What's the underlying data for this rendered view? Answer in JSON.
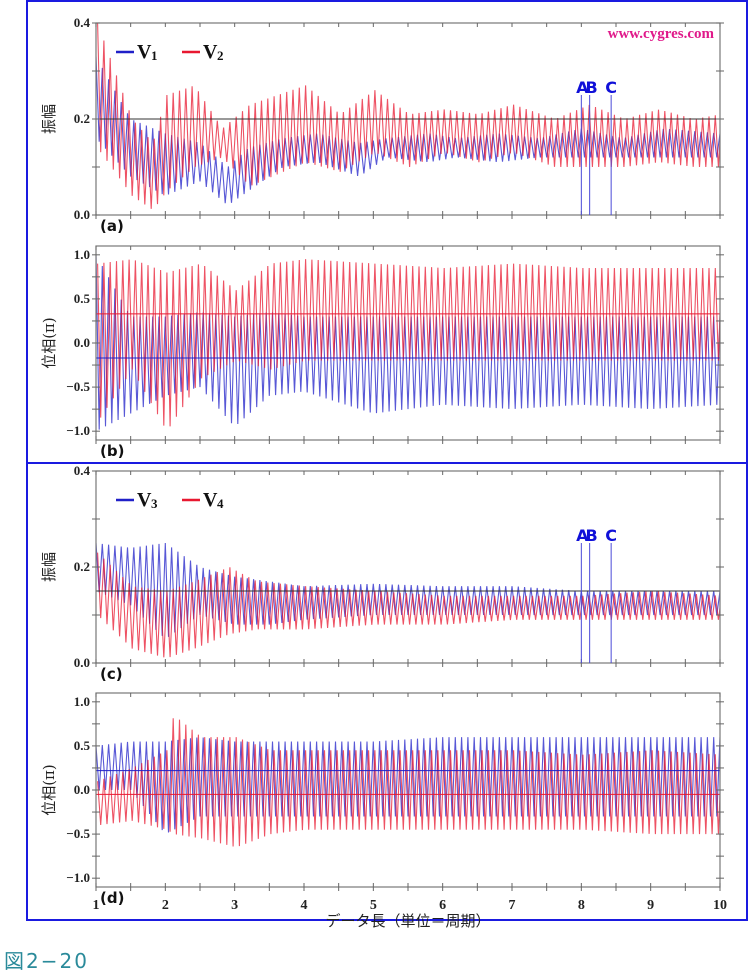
{
  "figure_caption": "図2−20",
  "watermark": "www.cygres.com",
  "colors": {
    "frame": "#1a1ae0",
    "series_blue": "#2020c8",
    "series_red": "#e81830",
    "watermark": "#e0198a",
    "marker": "#1010d8",
    "caption": "#2a8a9a"
  },
  "chart_data": [
    {
      "id": "a",
      "panel_label": "(a)",
      "type": "line",
      "ylabel": "振幅",
      "xlabel": "",
      "xlim": [
        1,
        10
      ],
      "ylim": [
        0.0,
        0.4
      ],
      "yticks": [
        0.0,
        0.2,
        0.4
      ],
      "ytick_labels": [
        "0.0",
        "0.2",
        "0.4"
      ],
      "legend": [
        {
          "name": "V",
          "sub": "1",
          "color": "#2020c8"
        },
        {
          "name": "V",
          "sub": "2",
          "color": "#e81830"
        }
      ],
      "legend_position": "top-left",
      "reference_lines": [
        {
          "y": 0.2,
          "color": "#333333"
        }
      ],
      "markers": [
        {
          "label": "A",
          "x": 8.0
        },
        {
          "label": "B",
          "x": 8.12
        },
        {
          "label": "C",
          "x": 8.43
        }
      ],
      "series": [
        {
          "name": "V1",
          "color": "#2020c8",
          "cycles_per_unit": 11,
          "envelope": [
            [
              1,
              0.33,
              0.16
            ],
            [
              1.5,
              0.2,
              0.08
            ],
            [
              2,
              0.17,
              0.04
            ],
            [
              2.5,
              0.15,
              0.07
            ],
            [
              2.9,
              0.1,
              0.02
            ],
            [
              3.2,
              0.14,
              0.05
            ],
            [
              3.7,
              0.16,
              0.1
            ],
            [
              4.2,
              0.17,
              0.11
            ],
            [
              4.8,
              0.15,
              0.08
            ],
            [
              5.2,
              0.16,
              0.12
            ],
            [
              5.8,
              0.17,
              0.11
            ],
            [
              6.2,
              0.16,
              0.12
            ],
            [
              6.8,
              0.17,
              0.11
            ],
            [
              7.4,
              0.16,
              0.12
            ],
            [
              8,
              0.18,
              0.12
            ],
            [
              8.6,
              0.16,
              0.12
            ],
            [
              9.2,
              0.18,
              0.12
            ],
            [
              10,
              0.17,
              0.12
            ]
          ]
        },
        {
          "name": "V2",
          "color": "#e81830",
          "cycles_per_unit": 11,
          "envelope": [
            [
              1,
              0.4,
              0.14
            ],
            [
              1.5,
              0.2,
              0.04
            ],
            [
              1.8,
              0.15,
              0.01
            ],
            [
              2,
              0.25,
              0.05
            ],
            [
              2.4,
              0.27,
              0.1
            ],
            [
              2.8,
              0.18,
              0.12
            ],
            [
              3.2,
              0.23,
              0.06
            ],
            [
              4,
              0.27,
              0.11
            ],
            [
              4.5,
              0.21,
              0.09
            ],
            [
              5,
              0.26,
              0.13
            ],
            [
              5.5,
              0.21,
              0.1
            ],
            [
              6,
              0.22,
              0.13
            ],
            [
              6.5,
              0.21,
              0.11
            ],
            [
              7,
              0.23,
              0.13
            ],
            [
              7.6,
              0.2,
              0.1
            ],
            [
              8.1,
              0.23,
              0.1
            ],
            [
              8.6,
              0.2,
              0.1
            ],
            [
              9.1,
              0.22,
              0.11
            ],
            [
              9.6,
              0.2,
              0.1
            ],
            [
              10,
              0.21,
              0.1
            ]
          ]
        }
      ]
    },
    {
      "id": "b",
      "panel_label": "(b)",
      "type": "line",
      "ylabel": "位相(π)",
      "xlim": [
        1,
        10
      ],
      "ylim": [
        -1.1,
        1.1
      ],
      "yticks": [
        -1.0,
        -0.5,
        0.0,
        0.5,
        1.0
      ],
      "ytick_labels": [
        "−1.0",
        "−0.5",
        "0.0",
        "0.5",
        "1.0"
      ],
      "reference_lines": [
        {
          "y": 0.33,
          "color": "#e81830"
        },
        {
          "y": -0.17,
          "color": "#2020c8"
        }
      ],
      "series": [
        {
          "name": "V1",
          "color": "#2020c8",
          "cycles_per_unit": 11,
          "envelope": [
            [
              1,
              1.0,
              -1.0
            ],
            [
              1.5,
              0.3,
              -0.8
            ],
            [
              2,
              0.3,
              -0.6
            ],
            [
              2.5,
              0.35,
              -0.5
            ],
            [
              3,
              0.3,
              -0.95
            ],
            [
              3.5,
              0.35,
              -0.6
            ],
            [
              4,
              0.3,
              -0.55
            ],
            [
              5,
              0.3,
              -0.8
            ],
            [
              6,
              0.3,
              -0.7
            ],
            [
              7,
              0.3,
              -0.75
            ],
            [
              8,
              0.3,
              -0.7
            ],
            [
              9,
              0.3,
              -0.75
            ],
            [
              10,
              0.3,
              -0.7
            ]
          ]
        },
        {
          "name": "V2",
          "color": "#e81830",
          "cycles_per_unit": 11,
          "envelope": [
            [
              1,
              0.9,
              -0.9
            ],
            [
              1.5,
              0.95,
              -0.3
            ],
            [
              2,
              0.8,
              -1.0
            ],
            [
              2.5,
              0.9,
              -0.4
            ],
            [
              3,
              0.6,
              -0.2
            ],
            [
              3.5,
              0.9,
              -0.3
            ],
            [
              4,
              0.95,
              -0.2
            ],
            [
              5,
              0.9,
              -0.2
            ],
            [
              6,
              0.85,
              -0.2
            ],
            [
              7,
              0.9,
              -0.2
            ],
            [
              8,
              0.85,
              -0.2
            ],
            [
              9,
              0.85,
              -0.2
            ],
            [
              10,
              0.85,
              -0.2
            ]
          ]
        }
      ]
    },
    {
      "id": "c",
      "panel_label": "(c)",
      "type": "line",
      "ylabel": "振幅",
      "xlim": [
        1,
        10
      ],
      "ylim": [
        0.0,
        0.4
      ],
      "yticks": [
        0.0,
        0.2,
        0.4
      ],
      "ytick_labels": [
        "0.0",
        "0.2",
        "0.4"
      ],
      "legend": [
        {
          "name": "V",
          "sub": "3",
          "color": "#2020c8"
        },
        {
          "name": "V",
          "sub": "4",
          "color": "#e81830"
        }
      ],
      "legend_position": "top-left",
      "reference_lines": [
        {
          "y": 0.15,
          "color": "#333333"
        }
      ],
      "markers": [
        {
          "label": "A",
          "x": 8.0
        },
        {
          "label": "B",
          "x": 8.12
        },
        {
          "label": "C",
          "x": 8.43
        }
      ],
      "series": [
        {
          "name": "V3",
          "color": "#2020c8",
          "cycles_per_unit": 11,
          "envelope": [
            [
              1,
              0.25,
              0.15
            ],
            [
              1.5,
              0.24,
              0.12
            ],
            [
              2,
              0.25,
              0.05
            ],
            [
              2.5,
              0.2,
              0.1
            ],
            [
              3,
              0.18,
              0.08
            ],
            [
              3.5,
              0.17,
              0.08
            ],
            [
              4,
              0.16,
              0.09
            ],
            [
              5,
              0.165,
              0.1
            ],
            [
              6,
              0.16,
              0.1
            ],
            [
              7,
              0.16,
              0.1
            ],
            [
              8,
              0.15,
              0.1
            ],
            [
              9,
              0.15,
              0.1
            ],
            [
              10,
              0.15,
              0.1
            ]
          ]
        },
        {
          "name": "V4",
          "color": "#e81830",
          "cycles_per_unit": 11,
          "envelope": [
            [
              1,
              0.23,
              0.1
            ],
            [
              1.5,
              0.16,
              0.03
            ],
            [
              2,
              0.15,
              0.01
            ],
            [
              2.4,
              0.17,
              0.03
            ],
            [
              2.9,
              0.2,
              0.06
            ],
            [
              3.3,
              0.17,
              0.07
            ],
            [
              4,
              0.16,
              0.07
            ],
            [
              5,
              0.15,
              0.08
            ],
            [
              6,
              0.14,
              0.08
            ],
            [
              7,
              0.14,
              0.09
            ],
            [
              8,
              0.14,
              0.09
            ],
            [
              9,
              0.15,
              0.09
            ],
            [
              10,
              0.14,
              0.09
            ]
          ]
        }
      ]
    },
    {
      "id": "d",
      "panel_label": "(d)",
      "type": "line",
      "ylabel": "位相(π)",
      "xlabel": "データ長（単位＝周期）",
      "xlim": [
        1,
        10
      ],
      "ylim": [
        -1.1,
        1.1
      ],
      "xticks": [
        1,
        2,
        3,
        4,
        5,
        6,
        7,
        8,
        9,
        10
      ],
      "xtick_labels": [
        "1",
        "2",
        "3",
        "4",
        "5",
        "6",
        "7",
        "8",
        "9",
        "10"
      ],
      "yticks": [
        -1.0,
        -0.5,
        0.0,
        0.5,
        1.0
      ],
      "ytick_labels": [
        "−1.0",
        "−0.5",
        "0.0",
        "0.5",
        "1.0"
      ],
      "reference_lines": [
        {
          "y": 0.22,
          "color": "#2020c8"
        },
        {
          "y": -0.05,
          "color": "#e81830"
        }
      ],
      "series": [
        {
          "name": "V3",
          "color": "#2020c8",
          "cycles_per_unit": 11,
          "envelope": [
            [
              1,
              0.5,
              0.0
            ],
            [
              1.5,
              0.55,
              0.0
            ],
            [
              2,
              0.55,
              -0.5
            ],
            [
              2.5,
              0.6,
              -0.3
            ],
            [
              3,
              0.55,
              -0.3
            ],
            [
              4,
              0.55,
              -0.3
            ],
            [
              5,
              0.55,
              -0.3
            ],
            [
              6,
              0.6,
              -0.3
            ],
            [
              7,
              0.6,
              -0.3
            ],
            [
              8,
              0.6,
              -0.3
            ],
            [
              9,
              0.6,
              -0.3
            ],
            [
              10,
              0.6,
              -0.3
            ]
          ]
        },
        {
          "name": "V4",
          "color": "#e81830",
          "cycles_per_unit": 11,
          "envelope": [
            [
              1,
              0.1,
              -0.4
            ],
            [
              1.5,
              0.25,
              -0.35
            ],
            [
              2,
              0.45,
              -0.45
            ],
            [
              2.1,
              0.85,
              -0.5
            ],
            [
              2.5,
              0.6,
              -0.55
            ],
            [
              3,
              0.6,
              -0.65
            ],
            [
              3.5,
              0.45,
              -0.5
            ],
            [
              4,
              0.45,
              -0.45
            ],
            [
              5,
              0.45,
              -0.45
            ],
            [
              6,
              0.45,
              -0.45
            ],
            [
              7,
              0.45,
              -0.45
            ],
            [
              8,
              0.4,
              -0.45
            ],
            [
              9,
              0.45,
              -0.5
            ],
            [
              10,
              0.4,
              -0.5
            ]
          ]
        }
      ]
    }
  ]
}
